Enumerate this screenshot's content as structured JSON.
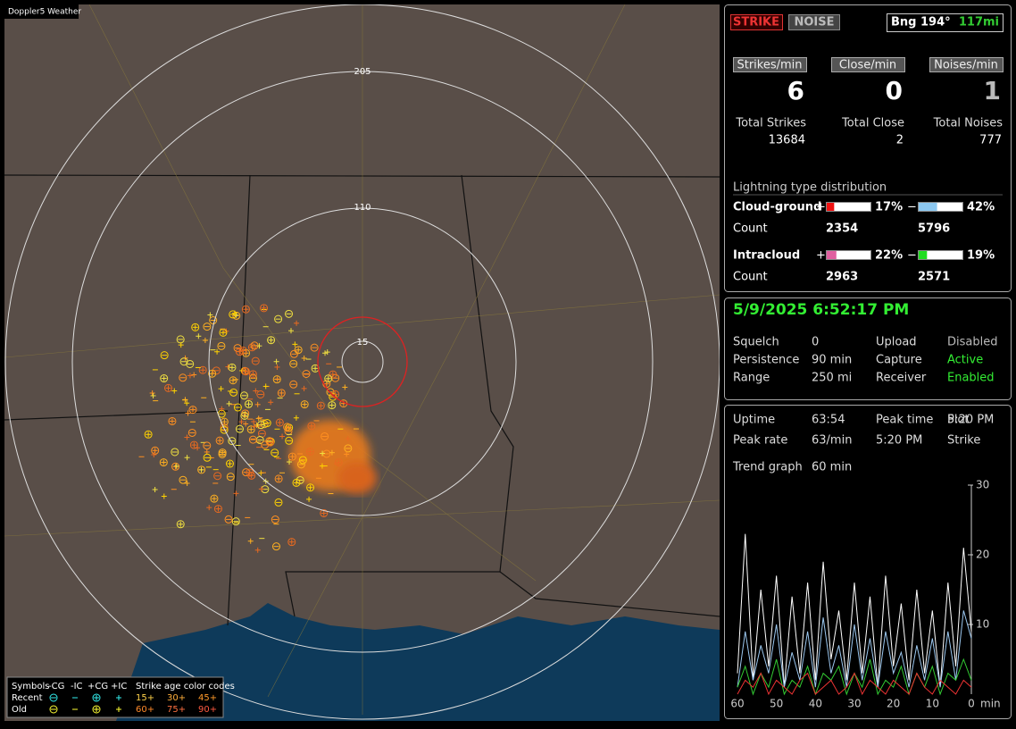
{
  "map": {
    "title": "Doppler5 Weather",
    "range_rings": [
      "205",
      "110",
      "15"
    ],
    "legend": {
      "symbols_label": "Symbols",
      "types": [
        "-CG",
        "-IC",
        "+CG",
        "+IC"
      ],
      "age_title": "Strike age color codes",
      "rows": [
        {
          "label": "Recent",
          "ages": [
            "15+",
            "30+",
            "45+"
          ]
        },
        {
          "label": "Old",
          "ages": [
            "60+",
            "75+",
            "90+"
          ]
        }
      ]
    }
  },
  "header": {
    "strike_button": "STRIKE",
    "noise_button": "NOISE",
    "bearing": "Bng 194°",
    "distance": "117mi"
  },
  "rates": [
    {
      "label": "Strikes/min",
      "value": 6
    },
    {
      "label": "Close/min",
      "value": 0
    },
    {
      "label": "Noises/min",
      "value": 1
    }
  ],
  "totals": [
    {
      "label": "Total Strikes",
      "value": 13684
    },
    {
      "label": "Total Close",
      "value": 2
    },
    {
      "label": "Total Noises",
      "value": 777
    }
  ],
  "distribution": {
    "title": "Lightning type distribution",
    "count_label": "Count",
    "rows": [
      {
        "name": "Cloud-ground",
        "plus_sign": "+",
        "plus": {
          "value": 17,
          "label": "17%"
        },
        "minus_sign": "−",
        "minus": {
          "value": 42,
          "label": "42%"
        },
        "plus_count": 2354,
        "minus_count": 5796
      },
      {
        "name": "Intracloud",
        "plus_sign": "+",
        "plus": {
          "value": 22,
          "label": "22%"
        },
        "minus_sign": "−",
        "minus": {
          "value": 19,
          "label": "19%"
        },
        "plus_count": 2963,
        "minus_count": 2571
      }
    ]
  },
  "status": {
    "datetime": "5/9/2025 6:52:17 PM",
    "rows": [
      [
        "Squelch",
        "0",
        "Upload",
        "Disabled"
      ],
      [
        "Persistence",
        "90 min",
        "Capture",
        "Active"
      ],
      [
        "Range",
        "250 mi",
        "Receiver",
        "Enabled"
      ]
    ]
  },
  "stats": {
    "rows": [
      [
        "Uptime",
        "63:54",
        "Peak time",
        "5:20 PM",
        "Plot"
      ],
      [
        "Peak rate",
        "63/min",
        "5:20 PM",
        "Strike"
      ]
    ],
    "trend_label": "Trend graph",
    "trend_span": "60 min"
  },
  "trend": {
    "x": [
      60,
      58,
      56,
      54,
      52,
      50,
      48,
      46,
      44,
      42,
      40,
      38,
      36,
      34,
      32,
      30,
      28,
      26,
      24,
      22,
      20,
      18,
      16,
      14,
      12,
      10,
      8,
      6,
      4,
      2,
      0
    ],
    "xlim": [
      60,
      0
    ],
    "ylim": [
      0,
      30
    ],
    "yticks": [
      10,
      20,
      30
    ],
    "xticks": [
      60,
      50,
      40,
      30,
      20,
      10,
      0
    ],
    "x_unit": "min",
    "series": [
      {
        "color": "#ffffff",
        "values": [
          3,
          23,
          2,
          15,
          4,
          17,
          1,
          14,
          3,
          16,
          2,
          19,
          5,
          12,
          2,
          16,
          3,
          14,
          1,
          17,
          4,
          13,
          2,
          15,
          3,
          12,
          1,
          16,
          4,
          21,
          9
        ]
      },
      {
        "color": "#9cc8f0",
        "values": [
          1,
          9,
          2,
          7,
          3,
          10,
          1,
          6,
          2,
          9,
          1,
          11,
          3,
          7,
          1,
          10,
          2,
          8,
          1,
          9,
          3,
          6,
          1,
          7,
          2,
          8,
          1,
          9,
          2,
          12,
          8
        ]
      },
      {
        "color": "#33cc33",
        "values": [
          1,
          4,
          0,
          3,
          1,
          5,
          0,
          2,
          1,
          4,
          0,
          3,
          2,
          4,
          0,
          3,
          1,
          5,
          0,
          2,
          1,
          4,
          0,
          3,
          1,
          4,
          0,
          3,
          2,
          5,
          2
        ]
      },
      {
        "color": "#ee3333",
        "values": [
          0,
          2,
          1,
          3,
          0,
          2,
          1,
          0,
          2,
          3,
          0,
          1,
          2,
          0,
          1,
          3,
          0,
          2,
          1,
          0,
          2,
          1,
          0,
          3,
          1,
          0,
          2,
          1,
          0,
          2,
          1
        ]
      }
    ]
  }
}
